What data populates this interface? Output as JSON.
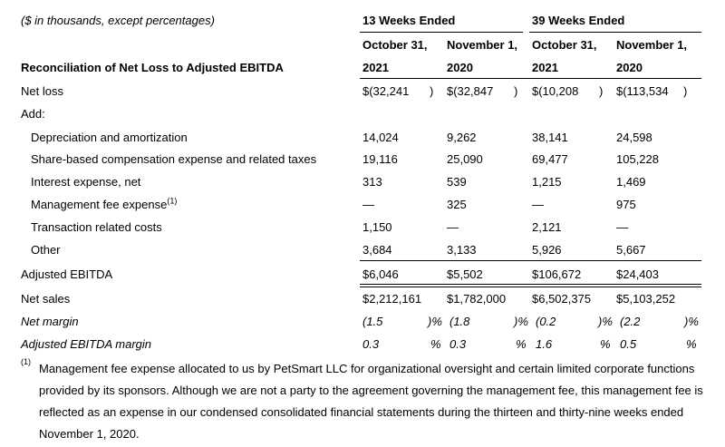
{
  "header": {
    "units_note": "($ in thousands, except percentages)",
    "table_title": "Reconciliation of Net Loss to Adjusted EBITDA",
    "group_13": "13 Weeks Ended",
    "group_39": "39 Weeks Ended",
    "cols": [
      {
        "line1": "October 31,",
        "line2": "2021"
      },
      {
        "line1": "November 1,",
        "line2": "2020"
      },
      {
        "line1": "October 31,",
        "line2": "2021"
      },
      {
        "line1": "November 1,",
        "line2": "2020"
      }
    ]
  },
  "rows": {
    "net_loss": {
      "label": "Net loss",
      "v": [
        "$(32,241",
        "$(32,847",
        "$(10,208",
        "$(113,534"
      ],
      "paren": [
        ")",
        ")",
        ")",
        ")"
      ]
    },
    "add": {
      "label": "Add:"
    },
    "dep": {
      "label": "Depreciation and amortization",
      "v": [
        "14,024",
        "9,262",
        "38,141",
        "24,598"
      ]
    },
    "sbc": {
      "label": "Share-based compensation expense and related taxes",
      "v": [
        "19,116",
        "25,090",
        "69,477",
        "105,228"
      ]
    },
    "interest": {
      "label": "Interest expense, net",
      "v": [
        "313",
        "539",
        "1,215",
        "1,469"
      ]
    },
    "mgmt": {
      "label": "Management fee expense",
      "sup": "(1)",
      "v": [
        "—",
        "325",
        "—",
        "975"
      ]
    },
    "trans": {
      "label": "Transaction related costs",
      "v": [
        "1,150",
        "—",
        "2,121",
        "—"
      ]
    },
    "other": {
      "label": "Other",
      "v": [
        "3,684",
        "3,133",
        "5,926",
        "5,667"
      ]
    },
    "ebitda": {
      "label": "Adjusted EBITDA",
      "v": [
        "$6,046",
        "$5,502",
        "$106,672",
        "$24,403"
      ]
    },
    "sales": {
      "label": "Net sales",
      "v": [
        "$2,212,161",
        "$1,782,000",
        "$6,502,375",
        "$5,103,252"
      ]
    },
    "net_margin": {
      "label": "Net margin",
      "v": [
        "(1.5",
        "(1.8",
        "(0.2",
        "(2.2"
      ],
      "suffix": [
        ")%",
        ")%",
        ")%",
        ")%"
      ]
    },
    "ebitda_margin": {
      "label": "Adjusted EBITDA margin",
      "v": [
        "0.3",
        "0.3",
        "1.6",
        "0.5"
      ],
      "suffix": [
        "%",
        "%",
        "%",
        "%"
      ]
    }
  },
  "footnote": {
    "mark": "(1)",
    "text": "Management fee expense allocated to us by PetSmart LLC for organizational oversight and certain limited corporate functions provided by its sponsors. Although we are not a party to the agreement governing the management fee, this management fee is reflected as an expense in our condensed consolidated financial statements during the thirteen and thirty-nine weeks ended November 1, 2020."
  }
}
